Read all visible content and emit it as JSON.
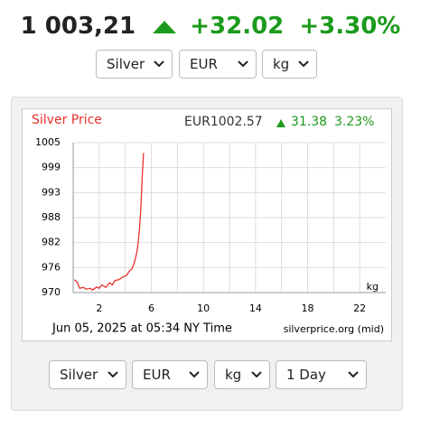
{
  "header": {
    "price": "1 003,21",
    "change": "+32.02",
    "change_pct": "+3.30%"
  },
  "selects_top": [
    "Silver",
    "EUR",
    "kg"
  ],
  "chart_data": {
    "type": "line",
    "title": "Silver Price",
    "price": "EUR1002.57",
    "change": "31.38",
    "change_pct": "3.23%",
    "unit": "kg",
    "footer_date": "Jun 05, 2025 at 05:34 NY Time",
    "source": "silverprice.org (mid)",
    "color": "#e8322b",
    "grid": true,
    "xlim": [
      0,
      24
    ],
    "xticks": [
      2,
      6,
      10,
      14,
      18,
      22
    ],
    "xminor": [
      4,
      8,
      12,
      16,
      20
    ],
    "ylim": [
      970,
      1005
    ],
    "yticks": [
      970,
      {
        "value": 975.83,
        "label": "976"
      },
      {
        "value": 981.67,
        "label": "982"
      },
      {
        "value": 987.5,
        "label": "988"
      },
      {
        "value": 993.33,
        "label": "993"
      },
      {
        "value": 999.17,
        "label": "999"
      },
      1005
    ],
    "x": [
      0.1,
      0.3,
      0.5,
      0.8,
      1.0,
      1.3,
      1.5,
      1.8,
      2.0,
      2.2,
      2.5,
      2.8,
      3.0,
      3.2,
      3.5,
      3.8,
      4.1,
      4.3,
      4.5,
      4.7,
      4.9,
      5.0,
      5.1,
      5.2,
      5.3,
      5.4
    ],
    "values": [
      973,
      972.5,
      971,
      971.2,
      970.8,
      971,
      970.6,
      971.3,
      971,
      971.8,
      971.2,
      972.3,
      971.8,
      972.8,
      973,
      973.6,
      974,
      975,
      975.5,
      977,
      979.5,
      982,
      985,
      990,
      997,
      1002.6
    ]
  },
  "selects_bottom": [
    "Silver",
    "EUR",
    "kg",
    "1 Day"
  ]
}
